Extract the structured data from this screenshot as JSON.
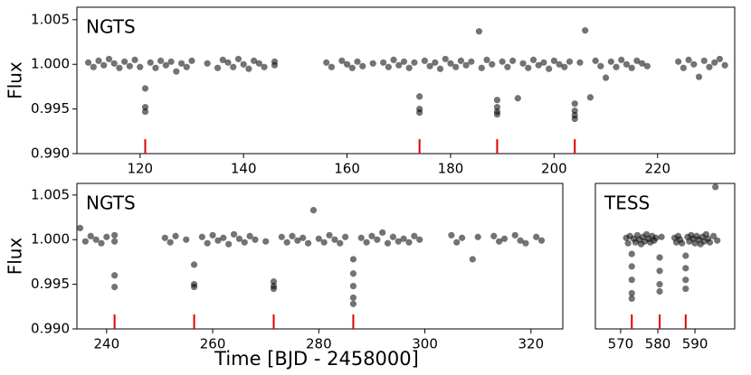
{
  "chart_data": [
    {
      "type": "scatter",
      "label": "NGTS",
      "label_color": "#0000ee",
      "ylabel": "Flux",
      "color": "#000000",
      "marker_color": "#e00000",
      "xlim": [
        107.8,
        234.9
      ],
      "xticks": [
        120,
        140,
        160,
        180,
        200,
        220
      ],
      "ylim": [
        0.99,
        1.0064
      ],
      "yticks": [
        {
          "value": 0.99,
          "label": "0.990"
        },
        0.995,
        {
          "value": 1,
          "label": "1.000"
        },
        1.005
      ],
      "markers": [
        121,
        174,
        189,
        204
      ],
      "x": [
        110,
        111,
        112,
        113,
        114,
        115,
        116,
        117,
        118,
        119,
        120,
        121,
        121,
        121,
        122,
        123,
        124,
        125,
        126,
        127,
        128,
        129,
        130,
        133,
        135,
        136,
        137,
        138,
        139,
        140,
        141,
        142,
        143,
        144,
        146,
        146,
        156,
        157,
        159,
        160,
        161,
        162,
        163,
        165,
        167,
        168,
        169,
        170,
        171,
        172,
        173,
        174,
        174,
        174,
        175,
        176,
        177,
        178,
        179,
        180,
        181,
        182,
        183,
        184,
        185.5,
        186,
        187,
        188,
        189,
        189,
        189,
        189,
        190,
        191,
        192,
        193,
        194,
        195,
        196,
        197,
        198,
        199,
        200,
        201,
        202,
        203,
        204,
        204,
        204,
        204,
        205,
        206,
        207,
        208,
        209,
        210,
        211,
        212,
        213,
        214,
        215,
        216,
        217,
        218,
        224,
        225,
        226,
        227,
        228,
        229,
        230,
        231,
        232,
        233
      ],
      "y": [
        1.0002,
        0.9997,
        1.0004,
        0.9999,
        1.0006,
        1.0001,
        0.9996,
        1.0003,
        0.9998,
        1.0005,
        0.9997,
        0.9973,
        0.9952,
        0.9947,
        1.0002,
        0.9996,
        1.0004,
        0.9999,
        1.0003,
        0.9992,
        1.0001,
        0.9997,
        1.0004,
        1.0001,
        0.9996,
        1.0005,
        1.0002,
        0.9997,
        1.0006,
        1.0,
        0.9995,
        1.0004,
        1.0001,
        0.9997,
        1.0003,
        0.9999,
        1.0002,
        0.9997,
        1.0004,
        1.0,
        0.9996,
        1.0003,
        0.9998,
        1.0001,
        1.0002,
        0.9997,
        1.0005,
        0.9999,
        1.0003,
        0.9996,
        1.0002,
        0.9964,
        0.995,
        0.9946,
        1.0004,
        0.9998,
        1.0002,
        0.9995,
        1.0006,
        1.0001,
        0.9997,
        1.0004,
        0.9999,
        1.0003,
        1.0037,
        0.9996,
        1.0005,
        1.0,
        0.996,
        0.9952,
        0.9947,
        0.9944,
        1.0003,
        0.9997,
        1.0004,
        0.9962,
        1.0001,
        0.9996,
        1.0005,
        0.9999,
        1.0002,
        0.9995,
        1.0004,
        1.0,
        0.9997,
        1.0003,
        0.9956,
        0.9948,
        0.9943,
        0.9939,
        1.0002,
        1.0038,
        0.9963,
        1.0004,
        0.9998,
        0.9985,
        1.0003,
        0.9997,
        1.0005,
        1.0,
        0.9996,
        1.0004,
        1.0001,
        0.9998,
        1.0003,
        0.9996,
        1.0005,
        1.0,
        0.9986,
        1.0004,
        0.9997,
        1.0002,
        1.0006,
        0.9999
      ]
    },
    {
      "type": "scatter",
      "label": "NGTS",
      "label_color": "#0000ee",
      "ylabel": "Flux",
      "xlabel": "Time [BJD - 2458000]",
      "color": "#000000",
      "marker_color": "#e00000",
      "xlim": [
        234.4,
        326.0
      ],
      "xticks": [
        240,
        260,
        280,
        300,
        320
      ],
      "ylim": [
        0.99,
        1.0063
      ],
      "yticks": [
        {
          "value": 0.99,
          "label": "0.990"
        },
        0.995,
        {
          "value": 1,
          "label": "1.000"
        },
        1.005
      ],
      "markers": [
        241.5,
        256.5,
        271.5,
        286.5
      ],
      "x": [
        235,
        236,
        237,
        238,
        239,
        240,
        241.5,
        241.5,
        241.5,
        241.5,
        251,
        252,
        253,
        255,
        256.5,
        256.5,
        256.5,
        258,
        259,
        260,
        261,
        262,
        263,
        264,
        265,
        266,
        267,
        268,
        270,
        271.5,
        271.5,
        271.5,
        273,
        274,
        275,
        276,
        277,
        278,
        279,
        280,
        281,
        282,
        283,
        284,
        285,
        286.5,
        286.5,
        286.5,
        286.5,
        286.5,
        288,
        289,
        290,
        291,
        292,
        293,
        294,
        295,
        296,
        297,
        298,
        299,
        305,
        306,
        307,
        309,
        310,
        313,
        314,
        315,
        317,
        318,
        319,
        321,
        322
      ],
      "y": [
        1.0013,
        0.9998,
        1.0004,
        1.0,
        0.9996,
        1.0003,
        1.0005,
        0.9998,
        0.996,
        0.9947,
        1.0002,
        0.9997,
        1.0004,
        1.0,
        0.9972,
        0.995,
        0.9947,
        1.0003,
        0.9996,
        1.0005,
        0.9999,
        1.0002,
        0.9995,
        1.0006,
        1.0001,
        0.9997,
        1.0004,
        1.0,
        0.9998,
        0.9953,
        0.9948,
        0.9945,
        1.0003,
        0.9997,
        1.0004,
        0.9999,
        1.0002,
        0.9996,
        1.0033,
        1.0001,
        0.9997,
        1.0005,
        1.0,
        0.9996,
        1.0003,
        0.9978,
        0.9962,
        0.9948,
        0.9935,
        0.9928,
        1.0002,
        0.9997,
        1.0004,
        1.0,
        1.0008,
        0.9996,
        1.0003,
        0.9998,
        1.0001,
        0.9997,
        1.0004,
        1.0,
        1.0005,
        0.9997,
        1.0002,
        0.9978,
        1.0003,
        1.0004,
        0.9998,
        1.0001,
        1.0005,
        0.9999,
        0.9996,
        1.0003,
        0.9999
      ]
    },
    {
      "type": "scatter",
      "label": "TESS",
      "label_color": "#0000ee",
      "color": "#000000",
      "marker_color": "#e00000",
      "xlim": [
        563.2,
        600.7
      ],
      "xticks": [
        570,
        580,
        590
      ],
      "ylim": [
        0.99,
        1.0063
      ],
      "markers": [
        573,
        580.5,
        587.5
      ],
      "x": [
        571.5,
        572,
        572.5,
        573,
        573,
        573,
        573,
        573,
        573.5,
        574,
        574.5,
        575,
        575.5,
        576,
        576.5,
        577,
        577.5,
        578,
        578.5,
        579,
        579.5,
        580.5,
        580.5,
        580.5,
        580.5,
        581,
        584.5,
        585,
        585.5,
        586,
        586.5,
        587.5,
        587.5,
        587.5,
        587.5,
        588,
        588.5,
        589,
        589.5,
        590,
        590.5,
        591,
        591.5,
        592,
        592.5,
        593,
        593.5,
        594,
        595,
        595.5,
        596
      ],
      "y": [
        1.0002,
        0.9996,
        1.0004,
        0.9984,
        0.997,
        0.9955,
        0.994,
        0.9934,
        1.0001,
        0.9997,
        1.0005,
        1.0,
        0.9995,
        1.0003,
        0.9998,
        1.0006,
        1.0001,
        0.9997,
        1.0004,
        0.9999,
        1.0002,
        0.998,
        0.9965,
        0.995,
        0.9942,
        1.0003,
        1.0002,
        0.9997,
        1.0004,
        1.0,
        0.9996,
        0.9982,
        0.9968,
        0.9955,
        0.9945,
        1.0003,
        0.9998,
        1.0005,
        1.0001,
        0.9996,
        1.0004,
        1.0,
        0.9995,
        1.0003,
        0.9998,
        1.0006,
        1.0001,
        0.9997,
        1.0004,
        1.0059,
        0.9999
      ]
    }
  ]
}
